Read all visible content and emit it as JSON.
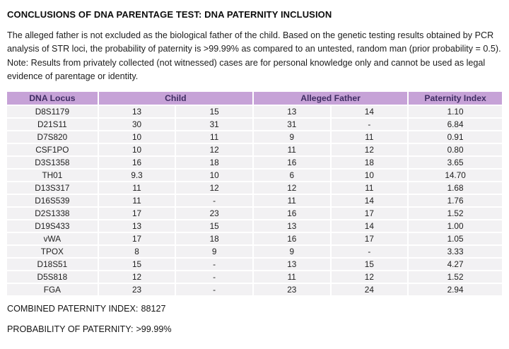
{
  "title": "CONCLUSIONS OF DNA PARENTAGE TEST: DNA PATERNITY INCLUSION",
  "intro": "The alleged father is not excluded as the biological father of the child. Based on the genetic testing results obtained by PCR analysis of STR loci, the probability of paternity is >99.99% as compared to an untested, random man (prior probability = 0.5). Note: Results from privately collected (not witnessed) cases are for personal knowledge only and cannot be used as legal evidence of parentage or identity.",
  "table": {
    "columns": [
      "DNA Locus",
      "Child",
      "Alleged Father",
      "Paternity Index"
    ],
    "rows": [
      {
        "locus": "D8S1179",
        "child": [
          "13",
          "15"
        ],
        "father": [
          "13",
          "14"
        ],
        "paternity_index": "1.10"
      },
      {
        "locus": "D21S11",
        "child": [
          "30",
          "31"
        ],
        "father": [
          "31",
          "-"
        ],
        "paternity_index": "6.84"
      },
      {
        "locus": "D7S820",
        "child": [
          "10",
          "11"
        ],
        "father": [
          "9",
          "11"
        ],
        "paternity_index": "0.91"
      },
      {
        "locus": "CSF1PO",
        "child": [
          "10",
          "12"
        ],
        "father": [
          "11",
          "12"
        ],
        "paternity_index": "0.80"
      },
      {
        "locus": "D3S1358",
        "child": [
          "16",
          "18"
        ],
        "father": [
          "16",
          "18"
        ],
        "paternity_index": "3.65"
      },
      {
        "locus": "TH01",
        "child": [
          "9.3",
          "10"
        ],
        "father": [
          "6",
          "10"
        ],
        "paternity_index": "14.70"
      },
      {
        "locus": "D13S317",
        "child": [
          "11",
          "12"
        ],
        "father": [
          "12",
          "11"
        ],
        "paternity_index": "1.68"
      },
      {
        "locus": "D16S539",
        "child": [
          "11",
          "-"
        ],
        "father": [
          "11",
          "14"
        ],
        "paternity_index": "1.76"
      },
      {
        "locus": "D2S1338",
        "child": [
          "17",
          "23"
        ],
        "father": [
          "16",
          "17"
        ],
        "paternity_index": "1.52"
      },
      {
        "locus": "D19S433",
        "child": [
          "13",
          "15"
        ],
        "father": [
          "13",
          "14"
        ],
        "paternity_index": "1.00"
      },
      {
        "locus": "vWA",
        "child": [
          "17",
          "18"
        ],
        "father": [
          "16",
          "17"
        ],
        "paternity_index": "1.05"
      },
      {
        "locus": "TPOX",
        "child": [
          "8",
          "9"
        ],
        "father": [
          "9",
          "-"
        ],
        "paternity_index": "3.33"
      },
      {
        "locus": "D18S51",
        "child": [
          "15",
          "-"
        ],
        "father": [
          "13",
          "15"
        ],
        "paternity_index": "4.27"
      },
      {
        "locus": "D5S818",
        "child": [
          "12",
          "-"
        ],
        "father": [
          "11",
          "12"
        ],
        "paternity_index": "1.52"
      },
      {
        "locus": "FGA",
        "child": [
          "23",
          "-"
        ],
        "father": [
          "23",
          "24"
        ],
        "paternity_index": "2.94"
      }
    ]
  },
  "summary": {
    "combined_index_label": "COMBINED PATERNITY INDEX:",
    "combined_index_value": "88127",
    "probability_label": "PROBABILITY OF PATERNITY:",
    "probability_value": ">99.99%"
  },
  "colors": {
    "header_bg": "#c6a2d7",
    "header_text": "#3f2d63",
    "row_bg": "#f2f1f3",
    "page_bg": "#ffffff"
  }
}
